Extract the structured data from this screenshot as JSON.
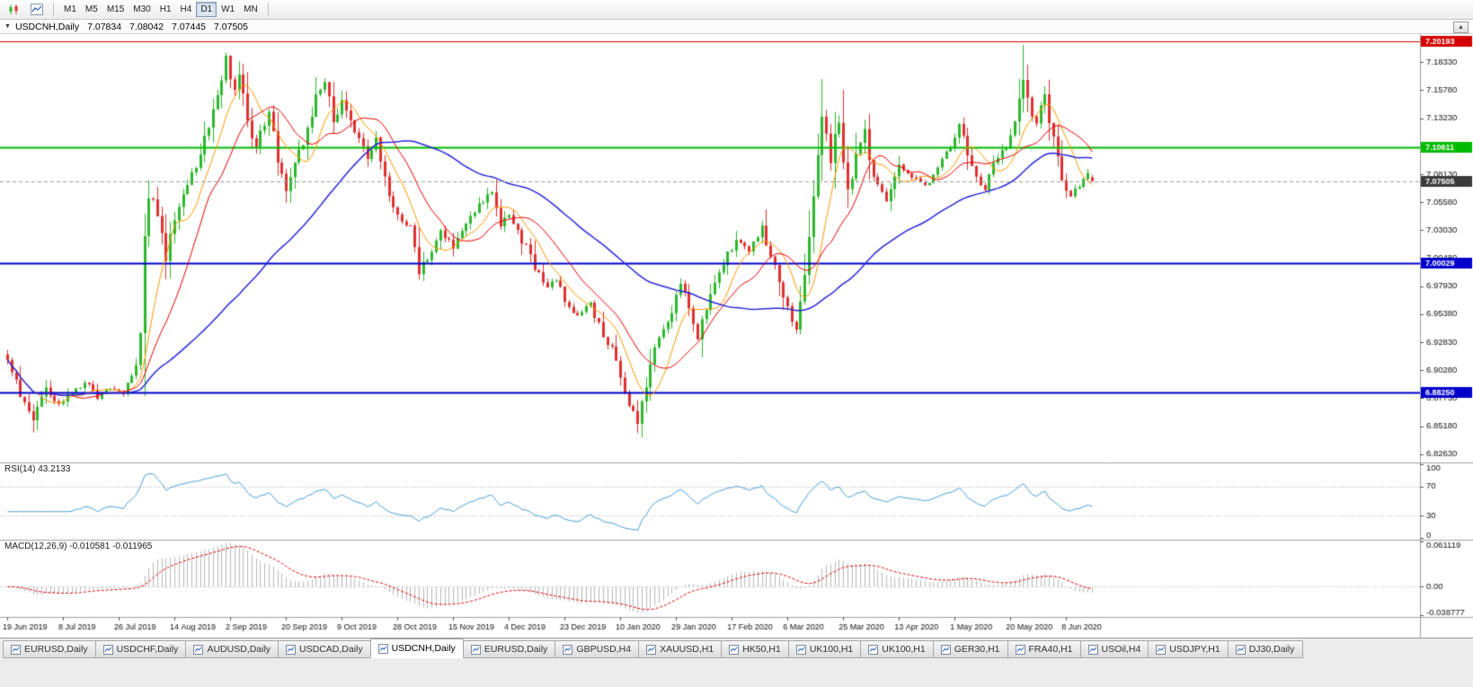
{
  "toolbar": {
    "icons": [
      {
        "name": "candlestick-chart-icon"
      },
      {
        "name": "line-chart-icon"
      }
    ],
    "timeframes": [
      "M1",
      "M5",
      "M15",
      "M30",
      "H1",
      "H4",
      "D1",
      "W1",
      "MN"
    ],
    "active_timeframe": "D1"
  },
  "chart_header": {
    "symbol_label": "USDCNH,Daily",
    "open": "7.07834",
    "high": "7.08042",
    "low": "7.07445",
    "close": "7.07505",
    "collapse_arrow": "▼"
  },
  "scroll_up_glyph": "▲",
  "tabs": {
    "active_index": 4,
    "items": [
      "EURUSD,Daily",
      "USDCHF,Daily",
      "AUDUSD,Daily",
      "USDCAD,Daily",
      "USDCNH,Daily",
      "EURUSD,Daily",
      "GBPUSD,H4",
      "XAUUSD,H1",
      "HK50,H1",
      "UK100,H1",
      "UK100,H1",
      "GER30,H1",
      "FRA40,H1",
      "USOil,H4",
      "USDJPY,H1",
      "DJ30,Daily"
    ]
  },
  "chart_data": {
    "type": "candlestick",
    "symbol": "USDCNH",
    "timeframe": "Daily",
    "count": 254,
    "label_every": 13,
    "view": {
      "price_top": 7.2088,
      "price_bottom": 6.8187
    },
    "colors": {
      "up": "#2eb82e",
      "down": "#e03131",
      "current_line": "#9a9a9a",
      "grid": "#a0a0a0",
      "axis_text": "#111111"
    },
    "price_axis_ticks": [
      "7.20880",
      "7.18330",
      "7.15780",
      "7.13230",
      "7.10680",
      "7.08130",
      "7.05580",
      "7.03030",
      "7.00480",
      "6.97930",
      "6.95380",
      "6.92830",
      "6.90280",
      "6.87730",
      "6.85180",
      "6.82630"
    ],
    "levels": [
      {
        "value": 7.20193,
        "label": "7.20193",
        "color": "#d40000",
        "width": 1
      },
      {
        "value": 7.10611,
        "label": "7.10611",
        "color": "#00bb00",
        "width": 2
      },
      {
        "value": 7.00029,
        "label": "7.00029",
        "color": "#0000cc",
        "width": 2
      },
      {
        "value": 6.8825,
        "label": "6.88250",
        "color": "#0000cc",
        "width": 2
      }
    ],
    "current_price": {
      "value": 7.07505,
      "label": "7.07505",
      "tag_color": "#3a3a3a"
    },
    "date_labels": [
      "19 Jun 2019",
      "8 Jul 2019",
      "26 Jul 2019",
      "14 Aug 2019",
      "2 Sep 2019",
      "20 Sep 2019",
      "9 Oct 2019",
      "28 Oct 2019",
      "15 Nov 2019",
      "4 Dec 2019",
      "23 Dec 2019",
      "10 Jan 2020",
      "29 Jan 2020",
      "17 Feb 2020",
      "6 Mar 2020",
      "25 Mar 2020",
      "13 Apr 2020",
      "1 May 2020",
      "20 May 2020",
      "8 Jun 2020"
    ],
    "moving_averages": [
      {
        "name": "ma-fast",
        "period": 8,
        "color": "#ff9900",
        "width": 1
      },
      {
        "name": "ma-mid",
        "period": 16,
        "color": "#e80000",
        "width": 1
      },
      {
        "name": "ma-slow",
        "period": 55,
        "color": "#2929d6",
        "width": 1.5
      }
    ],
    "indicators": {
      "rsi": {
        "value_label": "RSI(14) 43.2133",
        "period": 14,
        "current": 43.2133,
        "color": "#4aa0d8",
        "levels": [
          70,
          30
        ],
        "axis_labels": [
          {
            "v": 100,
            "t": "100"
          },
          {
            "v": 70,
            "t": "70"
          },
          {
            "v": 30,
            "t": "30"
          },
          {
            "v": 0,
            "t": "0"
          }
        ]
      },
      "macd": {
        "value_label": "MACD(12,26,9) -0.010581 -0.011965",
        "fast": 12,
        "slow": 26,
        "signal": 9,
        "main_current": -0.010581,
        "signal_current": -0.011965,
        "hist_color": "#b8b8b8",
        "signal_color": "#e00000",
        "max": 0.061119,
        "min": -0.038777,
        "axis_labels": [
          {
            "v": 0.061119,
            "t": "0.061119"
          },
          {
            "v": 0,
            "t": "0.00"
          },
          {
            "v": -0.038777,
            "t": "-0.038777"
          }
        ]
      }
    },
    "last_candle": [
      7.07834,
      7.08042,
      7.07445,
      7.07505
    ],
    "wick_overrides": {
      "6": {
        "low": 6.846
      },
      "51": {
        "high": 7.192
      },
      "147": {
        "low": 6.8455
      },
      "190": {
        "high": 7.168
      },
      "237": {
        "high": 7.199
      }
    },
    "price_anchors": [
      [
        0,
        6.912
      ],
      [
        3,
        6.882
      ],
      [
        6,
        6.858
      ],
      [
        9,
        6.886
      ],
      [
        12,
        6.872
      ],
      [
        15,
        6.882
      ],
      [
        18,
        6.892
      ],
      [
        21,
        6.878
      ],
      [
        24,
        6.886
      ],
      [
        27,
        6.882
      ],
      [
        30,
        6.902
      ],
      [
        31,
        6.938
      ],
      [
        32,
        7.022
      ],
      [
        33,
        7.062
      ],
      [
        35,
        7.048
      ],
      [
        37,
        7.008
      ],
      [
        39,
        7.042
      ],
      [
        42,
        7.072
      ],
      [
        45,
        7.098
      ],
      [
        48,
        7.142
      ],
      [
        50,
        7.172
      ],
      [
        51,
        7.186
      ],
      [
        53,
        7.158
      ],
      [
        54,
        7.176
      ],
      [
        56,
        7.132
      ],
      [
        58,
        7.106
      ],
      [
        61,
        7.138
      ],
      [
        63,
        7.092
      ],
      [
        65,
        7.062
      ],
      [
        67,
        7.088
      ],
      [
        70,
        7.122
      ],
      [
        72,
        7.152
      ],
      [
        74,
        7.166
      ],
      [
        76,
        7.132
      ],
      [
        78,
        7.146
      ],
      [
        81,
        7.122
      ],
      [
        84,
        7.096
      ],
      [
        86,
        7.112
      ],
      [
        89,
        7.062
      ],
      [
        91,
        7.046
      ],
      [
        94,
        7.032
      ],
      [
        96,
        6.992
      ],
      [
        98,
        7.006
      ],
      [
        101,
        7.028
      ],
      [
        104,
        7.016
      ],
      [
        107,
        7.036
      ],
      [
        110,
        7.052
      ],
      [
        113,
        7.066
      ],
      [
        115,
        7.036
      ],
      [
        117,
        7.042
      ],
      [
        120,
        7.022
      ],
      [
        123,
        6.996
      ],
      [
        126,
        6.976
      ],
      [
        128,
        6.988
      ],
      [
        130,
        6.966
      ],
      [
        133,
        6.952
      ],
      [
        136,
        6.962
      ],
      [
        139,
        6.936
      ],
      [
        141,
        6.922
      ],
      [
        143,
        6.898
      ],
      [
        145,
        6.872
      ],
      [
        147,
        6.858
      ],
      [
        149,
        6.882
      ],
      [
        150,
        6.908
      ],
      [
        152,
        6.936
      ],
      [
        155,
        6.956
      ],
      [
        157,
        6.986
      ],
      [
        159,
        6.962
      ],
      [
        161,
        6.936
      ],
      [
        164,
        6.976
      ],
      [
        167,
        7.002
      ],
      [
        170,
        7.022
      ],
      [
        173,
        7.012
      ],
      [
        176,
        7.032
      ],
      [
        179,
        6.996
      ],
      [
        182,
        6.962
      ],
      [
        184,
        6.938
      ],
      [
        186,
        6.988
      ],
      [
        188,
        7.062
      ],
      [
        190,
        7.138
      ],
      [
        192,
        7.092
      ],
      [
        194,
        7.132
      ],
      [
        196,
        7.062
      ],
      [
        198,
        7.098
      ],
      [
        200,
        7.118
      ],
      [
        202,
        7.082
      ],
      [
        205,
        7.058
      ],
      [
        208,
        7.092
      ],
      [
        211,
        7.078
      ],
      [
        214,
        7.068
      ],
      [
        217,
        7.088
      ],
      [
        220,
        7.108
      ],
      [
        222,
        7.126
      ],
      [
        224,
        7.098
      ],
      [
        226,
        7.082
      ],
      [
        228,
        7.068
      ],
      [
        230,
        7.088
      ],
      [
        233,
        7.106
      ],
      [
        235,
        7.132
      ],
      [
        237,
        7.162
      ],
      [
        238,
        7.148
      ],
      [
        240,
        7.128
      ],
      [
        242,
        7.152
      ],
      [
        244,
        7.112
      ],
      [
        246,
        7.076
      ],
      [
        248,
        7.058
      ],
      [
        250,
        7.072
      ],
      [
        252,
        7.082
      ],
      [
        253,
        7.07505
      ]
    ]
  }
}
